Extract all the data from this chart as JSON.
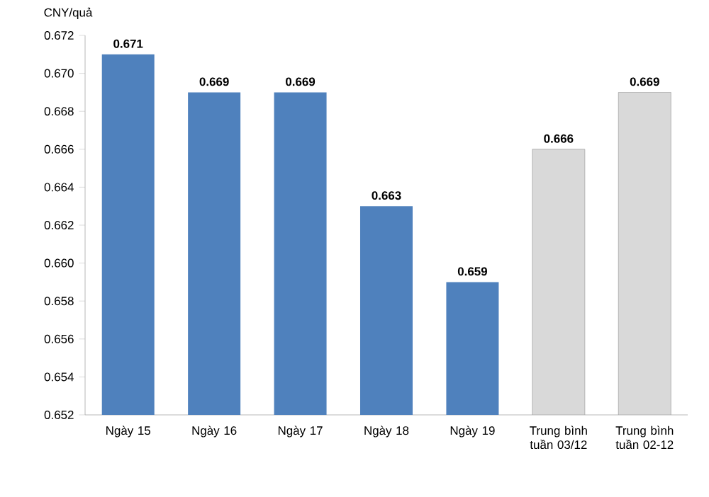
{
  "chart_data": {
    "type": "bar",
    "ylabel": "CNY/quả",
    "categories": [
      "Ngày 15",
      "Ngày 16",
      "Ngày 17",
      "Ngày 18",
      "Ngày 19",
      "Trung bình tuần 03/12",
      "Trung bình tuần 02-12"
    ],
    "values": [
      0.671,
      0.669,
      0.669,
      0.663,
      0.659,
      0.666,
      0.669
    ],
    "colors": [
      "#4f81bd",
      "#4f81bd",
      "#4f81bd",
      "#4f81bd",
      "#4f81bd",
      "#d9d9d9",
      "#d9d9d9"
    ],
    "ylim": [
      0.652,
      0.672
    ],
    "yticks": [
      0.652,
      0.654,
      0.656,
      0.658,
      {
        "value": 0.66,
        "label": "0.660"
      },
      0.662,
      0.664,
      0.666,
      0.668,
      {
        "value": 0.67,
        "label": "0.670"
      },
      0.672
    ],
    "data_labels": true
  }
}
